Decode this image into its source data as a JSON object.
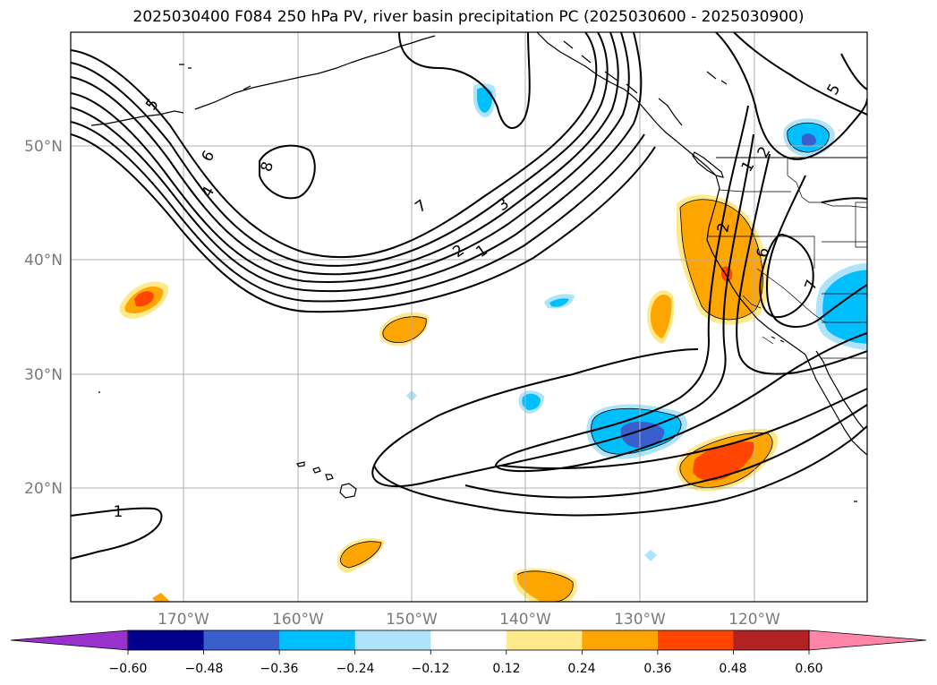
{
  "title": "2025030400 F084 250 hPa PV, river basin precipitation PC (2025030600 - 2025030900)",
  "map": {
    "lat_labels": [
      "50°N",
      "40°N",
      "30°N",
      "20°N"
    ],
    "lon_labels": [
      "170°W",
      "160°W",
      "150°W",
      "140°W",
      "130°W",
      "120°W"
    ],
    "contour_labels": [
      "5",
      "6",
      "4",
      "8",
      "7",
      "3",
      "2",
      "1",
      "1",
      "2",
      "6",
      "7",
      "5",
      "1",
      "2"
    ],
    "colors": {
      "coast": "#000000",
      "grid": "#b0b0b0",
      "contour": "#000000"
    }
  },
  "colorbar": {
    "tick_labels": [
      "−0.60",
      "−0.48",
      "−0.36",
      "−0.24",
      "−0.12",
      "0.12",
      "0.24",
      "0.36",
      "0.48",
      "0.60"
    ],
    "colors": [
      "#9932cc",
      "#00008b",
      "#3a5fcd",
      "#00bfff",
      "#aee3fa",
      "#ffffff",
      "#ffe98a",
      "#ffa500",
      "#ff4500",
      "#b22222",
      "#ff85a8"
    ]
  }
}
